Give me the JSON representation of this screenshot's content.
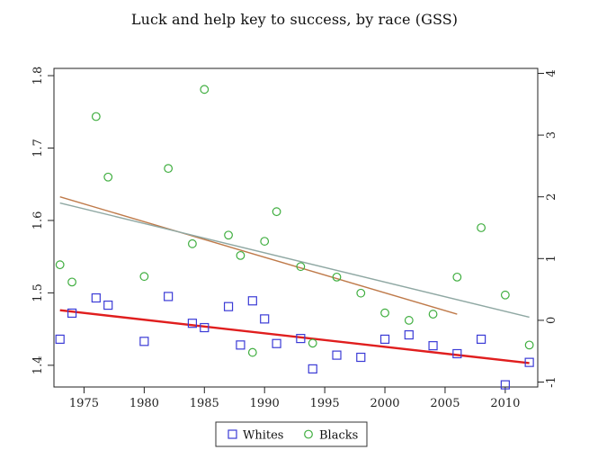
{
  "chart_data": {
    "type": "scatter",
    "title": "Luck and help key to success, by race (GSS)",
    "xlim": [
      1972.5,
      2012.7
    ],
    "left_ylim": [
      1.37,
      1.81
    ],
    "right_ylim": [
      -1.08,
      4.08
    ],
    "x_ticks": [
      1975,
      1980,
      1985,
      1990,
      1995,
      2000,
      2005,
      2010
    ],
    "left_ticks": [
      1.4,
      1.5,
      1.6,
      1.7,
      1.8
    ],
    "right_ticks": [
      -1,
      0,
      1,
      2,
      3,
      4
    ],
    "legend_position": "bottom-center",
    "series": [
      {
        "name": "Whites",
        "axis": "left",
        "marker": "square",
        "color": "#3b3bd6",
        "points": [
          [
            1973,
            1.436
          ],
          [
            1974,
            1.472
          ],
          [
            1976,
            1.493
          ],
          [
            1977,
            1.483
          ],
          [
            1980,
            1.433
          ],
          [
            1982,
            1.495
          ],
          [
            1984,
            1.458
          ],
          [
            1985,
            1.452
          ],
          [
            1987,
            1.481
          ],
          [
            1988,
            1.428
          ],
          [
            1989,
            1.489
          ],
          [
            1990,
            1.464
          ],
          [
            1991,
            1.43
          ],
          [
            1993,
            1.437
          ],
          [
            1994,
            1.395
          ],
          [
            1996,
            1.414
          ],
          [
            1998,
            1.411
          ],
          [
            2000,
            1.436
          ],
          [
            2002,
            1.442
          ],
          [
            2004,
            1.427
          ],
          [
            2006,
            1.416
          ],
          [
            2008,
            1.436
          ],
          [
            2010,
            1.373
          ],
          [
            2012,
            1.404
          ]
        ]
      },
      {
        "name": "Blacks",
        "axis": "right",
        "marker": "circle",
        "color": "#3fae3f",
        "points": [
          [
            1973,
            0.9
          ],
          [
            1974,
            0.62
          ],
          [
            1976,
            3.3
          ],
          [
            1977,
            2.32
          ],
          [
            1980,
            0.71
          ],
          [
            1982,
            2.46
          ],
          [
            1984,
            1.24
          ],
          [
            1985,
            3.74
          ],
          [
            1987,
            1.38
          ],
          [
            1988,
            1.05
          ],
          [
            1989,
            -0.52
          ],
          [
            1990,
            1.28
          ],
          [
            1991,
            1.76
          ],
          [
            1993,
            0.87
          ],
          [
            1994,
            -0.37
          ],
          [
            1996,
            0.7
          ],
          [
            1998,
            0.44
          ],
          [
            2000,
            0.12
          ],
          [
            2002,
            0.0
          ],
          [
            2004,
            0.1
          ],
          [
            2006,
            0.7
          ],
          [
            2008,
            1.5
          ],
          [
            2010,
            0.41
          ],
          [
            2012,
            -0.4
          ]
        ]
      }
    ],
    "fit_lines": [
      {
        "color": "#e01e1e",
        "axis": "left",
        "width": 2.4,
        "points": [
          [
            1973,
            1.476
          ],
          [
            2012,
            1.403
          ]
        ]
      },
      {
        "color": "#bf7a4a",
        "axis": "right",
        "width": 1.4,
        "points": [
          [
            1973,
            2.0
          ],
          [
            2006,
            0.1
          ]
        ]
      },
      {
        "color": "#8fa8a3",
        "axis": "right",
        "width": 1.4,
        "points": [
          [
            1973,
            1.9
          ],
          [
            2012,
            0.05
          ]
        ]
      }
    ]
  }
}
